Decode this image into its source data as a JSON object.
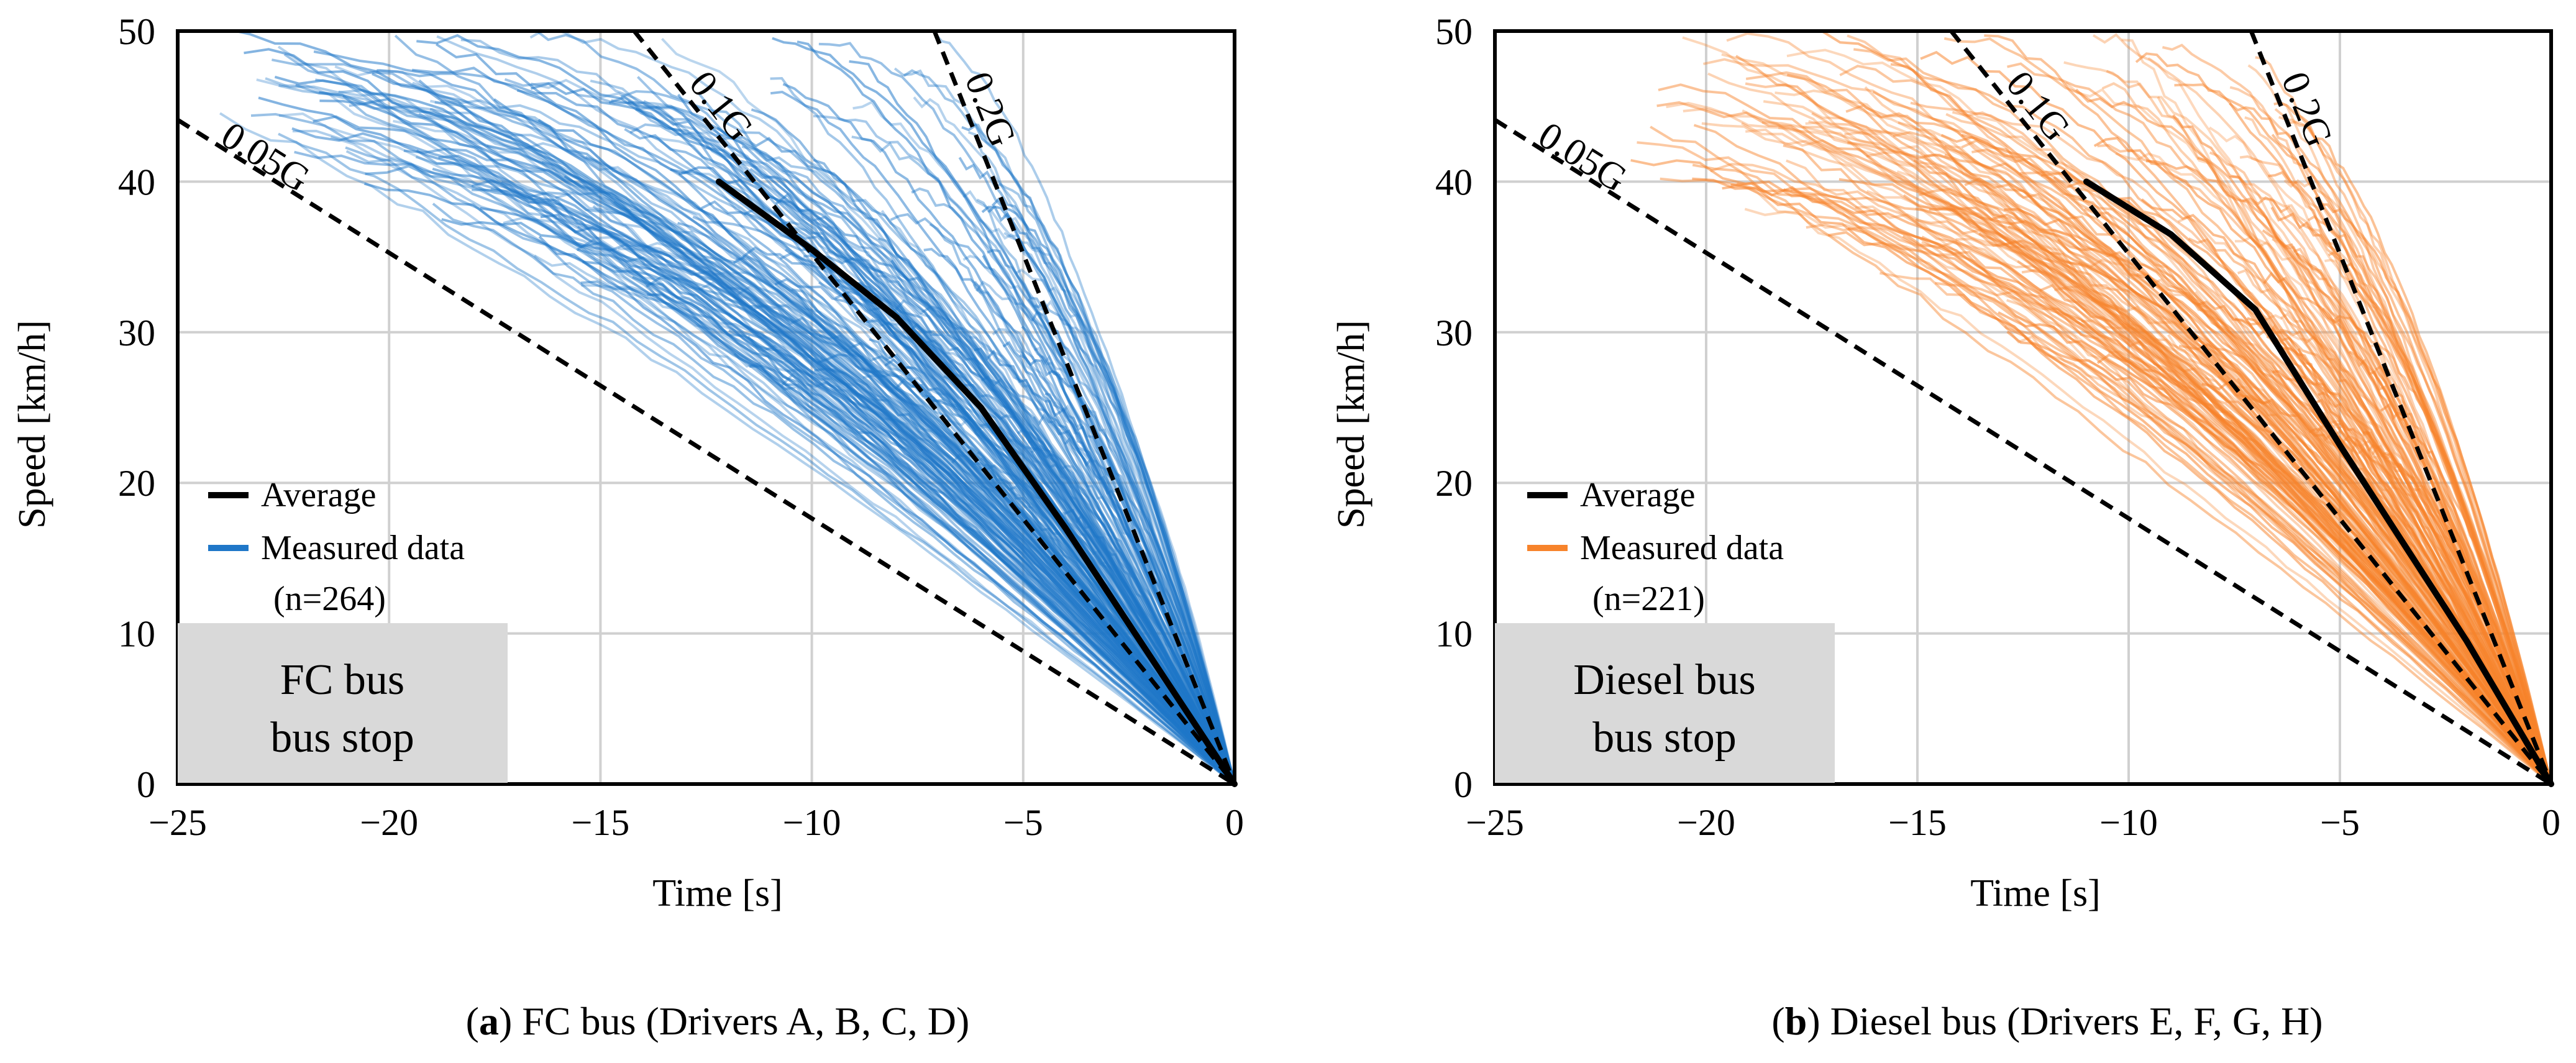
{
  "chart_data": [
    {
      "type": "line",
      "panel": "a",
      "caption_letter": "a",
      "caption_text": "FC bus (Drivers A, B, C, D)",
      "xlabel": "Time [s]",
      "ylabel": "Speed [km/h]",
      "xlim": [
        -25,
        0
      ],
      "ylim": [
        0,
        50
      ],
      "x_ticks": [
        -25,
        -20,
        -15,
        -10,
        -5,
        0
      ],
      "x_tick_labels": [
        "−25",
        "−20",
        "−15",
        "−10",
        "−5",
        "0"
      ],
      "y_ticks": [
        0,
        10,
        20,
        30,
        40,
        50
      ],
      "y_tick_labels": [
        "0",
        "10",
        "20",
        "30",
        "40",
        "50"
      ],
      "grid": true,
      "measured_color": "#1f77c8",
      "average_color": "#000000",
      "legend": {
        "placement": "middle-left",
        "average_label": "Average",
        "measured_label": "Measured data",
        "n_label": "(n=264)"
      },
      "condition_box": {
        "line1": "FC bus",
        "line2": "bus stop"
      },
      "reference_lines": [
        {
          "label": "0.05G",
          "decel_g": 0.05,
          "x": [
            -25,
            0
          ],
          "y": [
            44.1,
            0
          ]
        },
        {
          "label": "0.1G",
          "decel_g": 0.1,
          "x": [
            -14.2,
            0
          ],
          "y": [
            50,
            0
          ]
        },
        {
          "label": "0.2G",
          "decel_g": 0.2,
          "x": [
            -7.1,
            0
          ],
          "y": [
            50,
            0
          ]
        }
      ],
      "average": {
        "name": "Average",
        "x": [
          -12.2,
          -10,
          -8,
          -6,
          -4,
          -2,
          0
        ],
        "y": [
          40,
          35.5,
          31,
          25,
          17,
          8.5,
          0
        ]
      },
      "measured": {
        "name": "Measured data",
        "n": 264,
        "start_time_range": [
          -24,
          -4
        ],
        "start_speed_range": [
          13,
          50
        ],
        "seed": 11,
        "sample_count": 230
      }
    },
    {
      "type": "line",
      "panel": "b",
      "caption_letter": "b",
      "caption_text": "Diesel bus (Drivers E, F, G, H)",
      "xlabel": "Time [s]",
      "ylabel": "Speed [km/h]",
      "xlim": [
        -25,
        0
      ],
      "ylim": [
        0,
        50
      ],
      "x_ticks": [
        -25,
        -20,
        -15,
        -10,
        -5,
        0
      ],
      "x_tick_labels": [
        "−25",
        "−20",
        "−15",
        "−10",
        "−5",
        "0"
      ],
      "y_ticks": [
        0,
        10,
        20,
        30,
        40,
        50
      ],
      "y_tick_labels": [
        "0",
        "10",
        "20",
        "30",
        "40",
        "50"
      ],
      "grid": true,
      "measured_color": "#f7832b",
      "average_color": "#000000",
      "legend": {
        "placement": "middle-left",
        "average_label": "Average",
        "measured_label": "Measured data",
        "n_label": "(n=221)"
      },
      "condition_box": {
        "line1": "Diesel bus",
        "line2": "bus stop"
      },
      "reference_lines": [
        {
          "label": "0.05G",
          "decel_g": 0.05,
          "x": [
            -25,
            0
          ],
          "y": [
            44.1,
            0
          ]
        },
        {
          "label": "0.1G",
          "decel_g": 0.1,
          "x": [
            -14.2,
            0
          ],
          "y": [
            50,
            0
          ]
        },
        {
          "label": "0.2G",
          "decel_g": 0.2,
          "x": [
            -7.1,
            0
          ],
          "y": [
            50,
            0
          ]
        }
      ],
      "average": {
        "name": "Average",
        "x": [
          -11,
          -9,
          -7,
          -5,
          -3.5,
          -2,
          0
        ],
        "y": [
          40,
          36.5,
          31.5,
          22.5,
          16,
          9.5,
          0
        ]
      },
      "measured": {
        "name": "Measured data",
        "n": 221,
        "start_time_range": [
          -22,
          -4
        ],
        "start_speed_range": [
          18,
          50
        ],
        "seed": 29,
        "sample_count": 200
      }
    }
  ]
}
